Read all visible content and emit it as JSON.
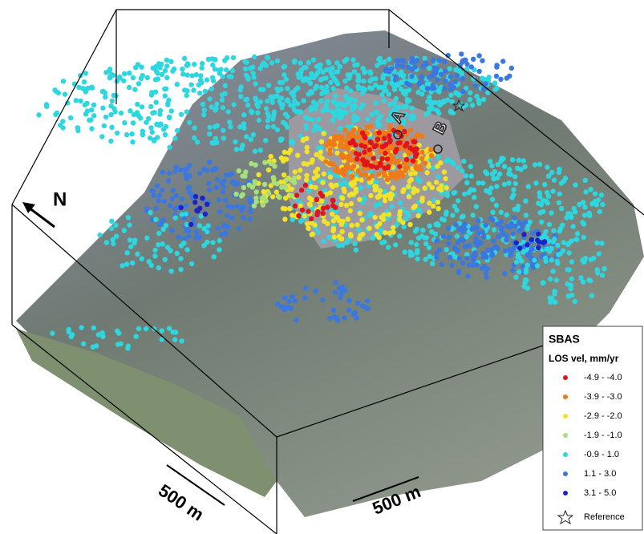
{
  "labels": {
    "north": "N",
    "point_a": "A",
    "point_b": "B",
    "scale_1": "500 m",
    "scale_2": "500 m"
  },
  "legend": {
    "title": "SBAS",
    "subtitle": "LOS vel, mm/yr",
    "classes": [
      {
        "label": "-4.9 - -4.0",
        "color": "#e0141c"
      },
      {
        "label": "-3.9 - -3.0",
        "color": "#f07a1a"
      },
      {
        "label": "-2.9 - -2.0",
        "color": "#f2e22a"
      },
      {
        "label": "-1.9 - -1.0",
        "color": "#a6e07a"
      },
      {
        "label": "-0.9 - 1.0",
        "color": "#2ed6e0"
      },
      {
        "label": "1.1 - 3.0",
        "color": "#3a78e0"
      },
      {
        "label": "3.1 - 5.0",
        "color": "#1a22c8"
      }
    ],
    "reference": "Reference"
  }
}
